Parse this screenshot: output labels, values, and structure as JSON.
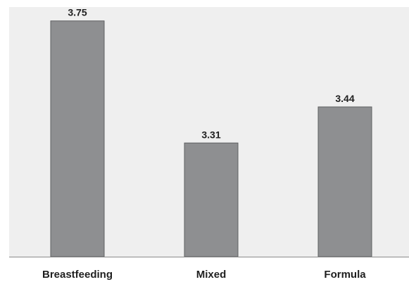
{
  "chart_data": {
    "type": "bar",
    "categories": [
      "Breastfeeding",
      "Mixed",
      "Formula"
    ],
    "values": [
      3.75,
      3.31,
      3.44
    ],
    "value_labels": [
      "3.75",
      "3.31",
      "3.44"
    ],
    "title": "",
    "xlabel": "",
    "ylabel": "",
    "ylim": [
      2.9,
      3.8
    ],
    "grid": false,
    "legend": "none",
    "colors": {
      "plot_background": "#efefef",
      "bar_fill": "#8e8f91",
      "bar_stroke": "#5f6062",
      "text": "#1f1f1f",
      "axis_line": "#8a8a8a"
    }
  }
}
